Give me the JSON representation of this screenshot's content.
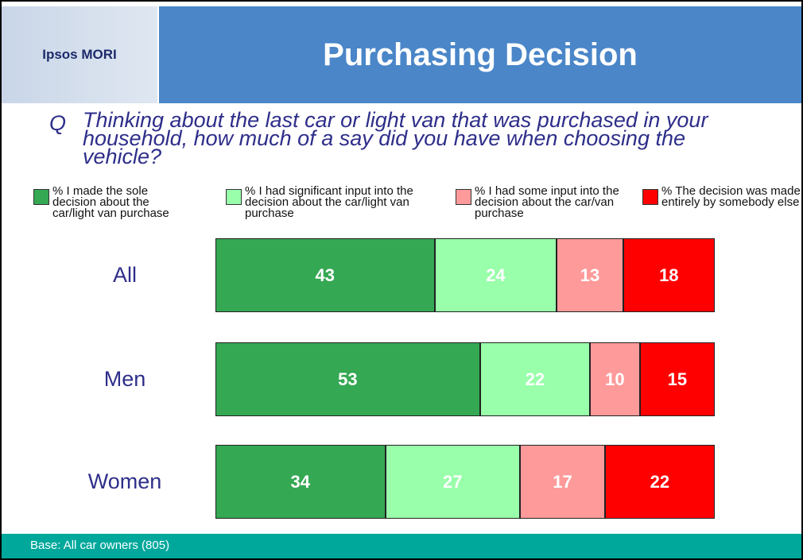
{
  "logo": "Ipsos MORI",
  "chart_data": {
    "type": "bar",
    "orientation": "horizontal",
    "stacking": "percent",
    "title": "Purchasing Decision",
    "question_label": "Q",
    "question": "Thinking about the last car or light van that was purchased in your household, how much of a say did you have when choosing the vehicle?",
    "categories": [
      "All",
      "Men",
      "Women"
    ],
    "series": [
      {
        "name": "% I made the sole decision about the car/light van purchase",
        "color": "#35a853",
        "values": [
          43,
          53,
          34
        ]
      },
      {
        "name": "% I had significant input into the decision about the car/light van purchase",
        "color": "#99ffaa",
        "values": [
          24,
          22,
          27
        ]
      },
      {
        "name": "% I had some input into the decision about the car/van purchase",
        "color": "#ff9a9a",
        "values": [
          13,
          10,
          17
        ]
      },
      {
        "name": "% The decision was made entirely by somebody else",
        "color": "#ff0000",
        "values": [
          18,
          15,
          22
        ]
      }
    ],
    "footnote": "Base: All car owners (805)"
  }
}
